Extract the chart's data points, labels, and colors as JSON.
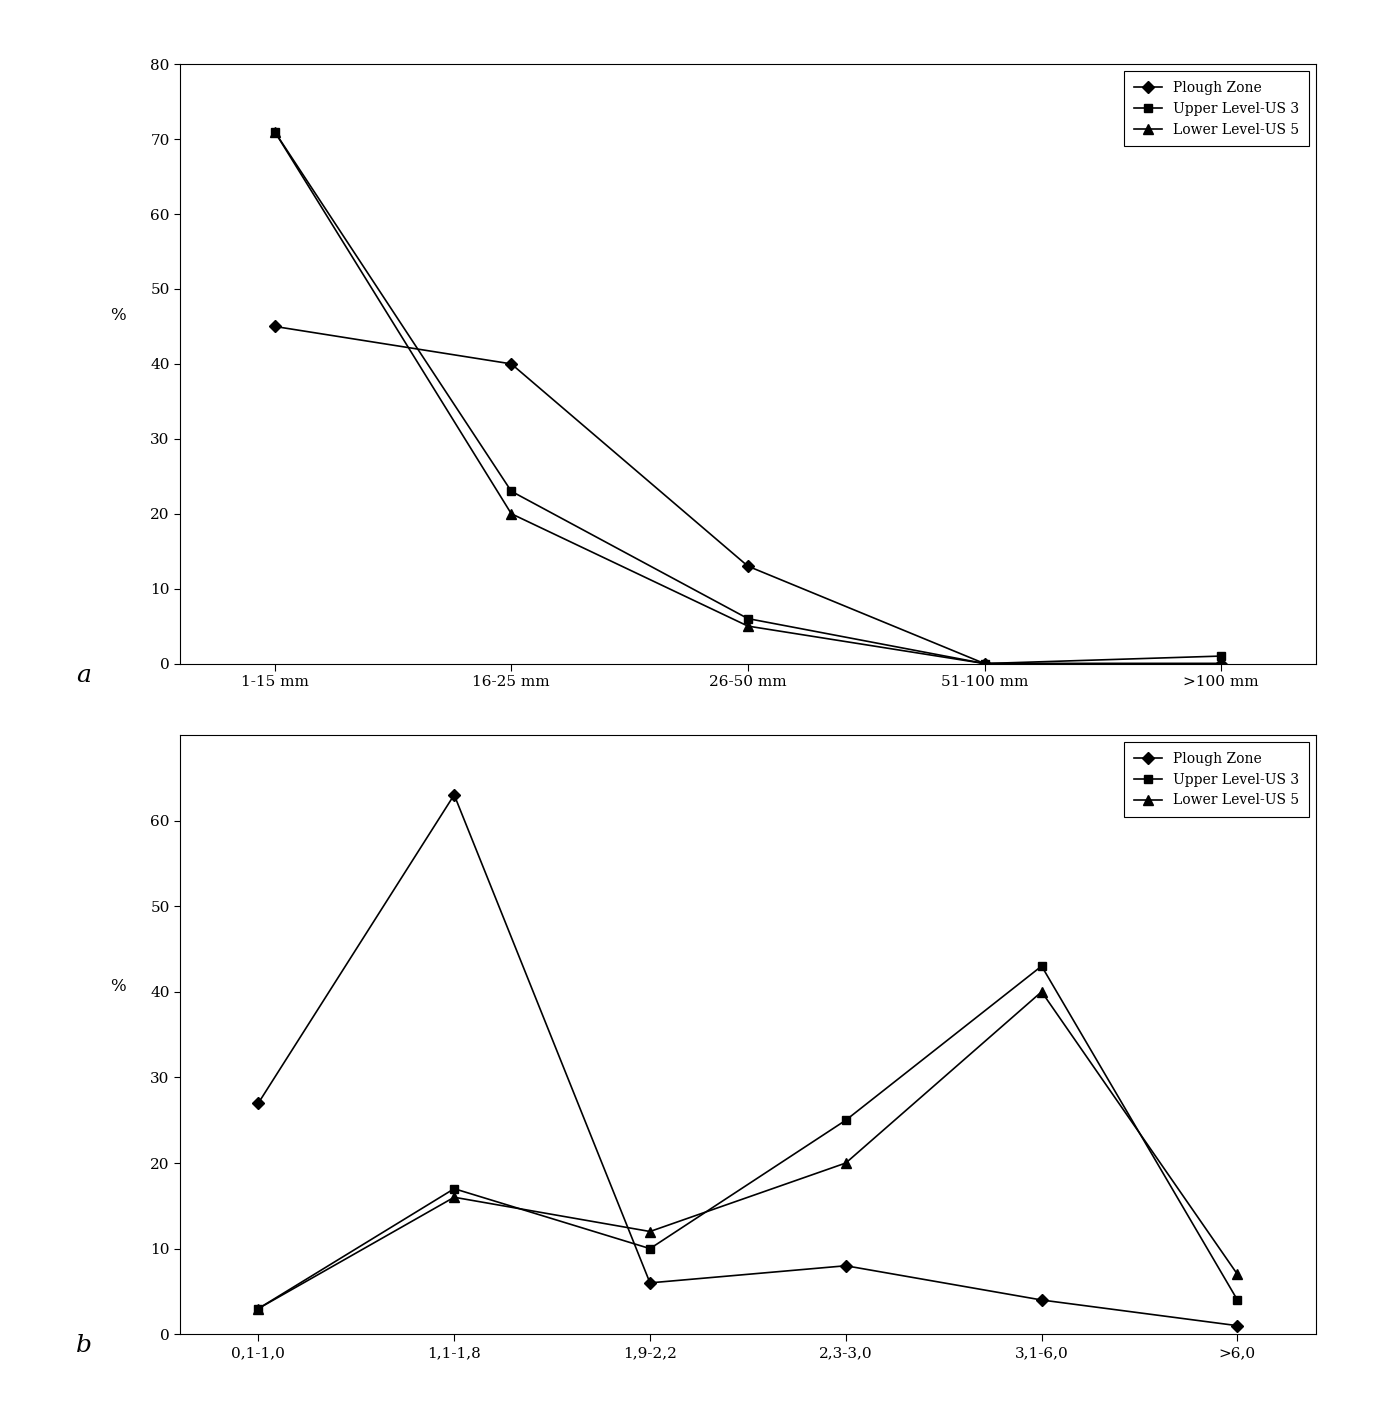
{
  "chart_a": {
    "x_labels": [
      "1-15 mm",
      "16-25 mm",
      "26-50 mm",
      "51-100 mm",
      ">100 mm"
    ],
    "plough_zone": [
      45,
      40,
      13,
      0,
      0
    ],
    "upper_level": [
      71,
      23,
      6,
      0,
      1
    ],
    "lower_level": [
      71,
      20,
      5,
      0,
      0
    ],
    "ylim": [
      0,
      80
    ],
    "yticks": [
      0,
      10,
      20,
      30,
      40,
      50,
      60,
      70,
      80
    ],
    "ylabel": "%"
  },
  "chart_b": {
    "x_labels": [
      "0,1-1,0",
      "1,1-1,8",
      "1,9-2,2",
      "2,3-3,0",
      "3,1-6,0",
      ">6,0"
    ],
    "plough_zone": [
      27,
      63,
      6,
      8,
      4,
      1
    ],
    "upper_level": [
      3,
      17,
      10,
      25,
      43,
      4
    ],
    "lower_level": [
      3,
      16,
      12,
      20,
      40,
      7
    ],
    "ylim": [
      0,
      70
    ],
    "yticks": [
      0,
      10,
      20,
      30,
      40,
      50,
      60
    ],
    "ylabel": "%"
  },
  "legend_labels": [
    "Plough Zone",
    "Upper Level-US 3",
    "Lower Level-US 5"
  ],
  "bg_color": "#ffffff",
  "fig_bg_color": "#ffffff",
  "label_a": "a",
  "label_b": "b"
}
